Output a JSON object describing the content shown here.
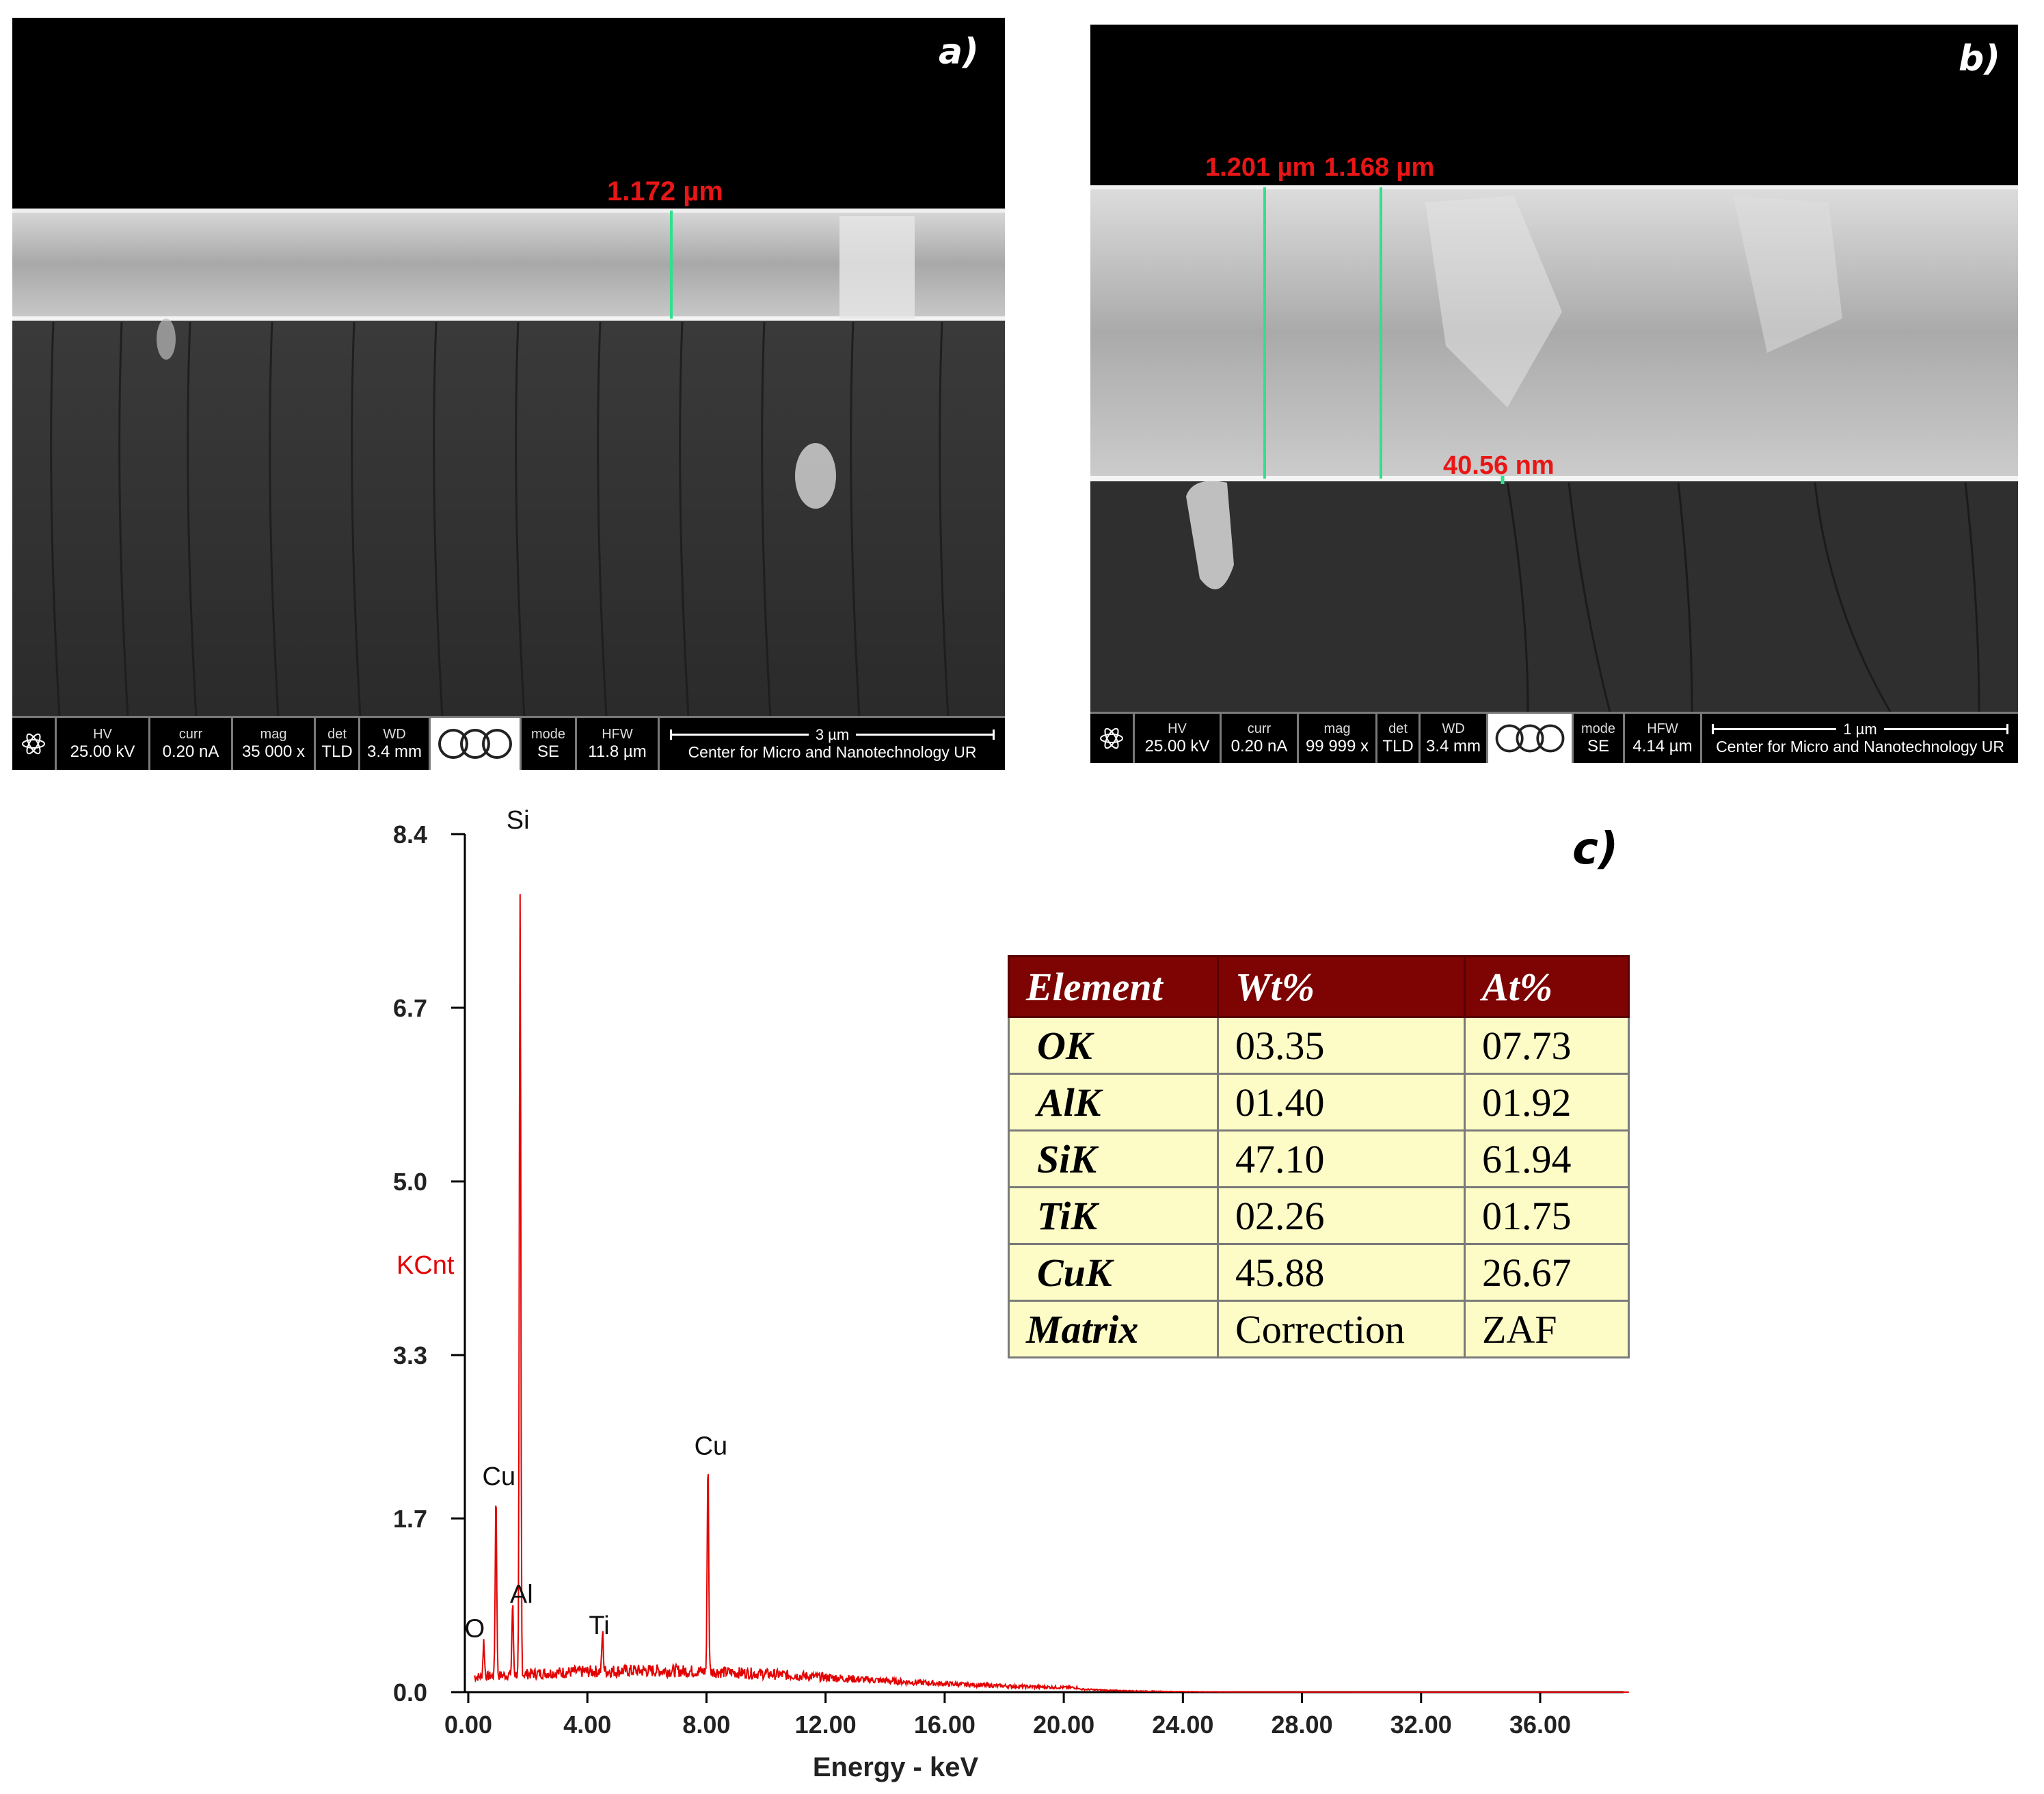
{
  "panel_a": {
    "letter": "a)",
    "measurement": "1.172 µm",
    "databar": {
      "hv_label": "HV",
      "hv_value": "25.00 kV",
      "curr_label": "curr",
      "curr_value": "0.20 nA",
      "mag_label": "mag",
      "mag_value": "35 000 x",
      "det_label": "det",
      "det_value": "TLD",
      "wd_label": "WD",
      "wd_value": "3.4 mm",
      "mode_label": "mode",
      "mode_value": "SE",
      "hfw_label": "HFW",
      "hfw_value": "11.8 µm",
      "scale_label": "3 µm",
      "facility": "Center for Micro and Nanotechnology UR"
    }
  },
  "panel_b": {
    "letter": "b)",
    "measurement_1": "1.201 µm",
    "measurement_2": "1.168 µm",
    "measurement_3": "40.56 nm",
    "databar": {
      "hv_label": "HV",
      "hv_value": "25.00 kV",
      "curr_label": "curr",
      "curr_value": "0.20 nA",
      "mag_label": "mag",
      "mag_value": "99 999 x",
      "det_label": "det",
      "det_value": "TLD",
      "wd_label": "WD",
      "wd_value": "3.4 mm",
      "mode_label": "mode",
      "mode_value": "SE",
      "hfw_label": "HFW",
      "hfw_value": "4.14 µm",
      "scale_label": "1 µm",
      "facility": "Center for Micro and Nanotechnology UR"
    }
  },
  "panel_c": {
    "letter": "c)"
  },
  "chart_data": {
    "type": "line",
    "xlabel": "Energy - keV",
    "ylabel": "KCnt",
    "xlim": [
      0,
      39
    ],
    "ylim": [
      0,
      8.4
    ],
    "x_ticks": [
      "0.00",
      "4.00",
      "8.00",
      "12.00",
      "16.00",
      "20.00",
      "24.00",
      "28.00",
      "32.00",
      "36.00"
    ],
    "x_tick_values": [
      0,
      4,
      8,
      12,
      16,
      20,
      24,
      28,
      32,
      36
    ],
    "y_ticks": [
      "0.0",
      "1.7",
      "3.3",
      "5.0",
      "6.7",
      "8.4"
    ],
    "y_tick_values": [
      0,
      1.7,
      3.3,
      5.0,
      6.7,
      8.4
    ],
    "color": "#e30000",
    "peaks": [
      {
        "label": "O",
        "x": 0.52,
        "y": 0.35
      },
      {
        "label": "Cu",
        "x": 0.93,
        "y": 1.8
      },
      {
        "label": "Al",
        "x": 1.49,
        "y": 0.7
      },
      {
        "label": "Si",
        "x": 1.74,
        "y": 7.6
      },
      {
        "label": "Ti",
        "x": 4.51,
        "y": 0.38
      },
      {
        "label": "Cu",
        "x": 8.05,
        "y": 2.1
      }
    ]
  },
  "eds_table": {
    "headers": [
      "Element",
      "Wt%",
      "At%"
    ],
    "rows": [
      [
        "OK",
        "03.35",
        "07.73"
      ],
      [
        "AlK",
        "01.40",
        "01.92"
      ],
      [
        "SiK",
        "47.10",
        "61.94"
      ],
      [
        "TiK",
        "02.26",
        "01.75"
      ],
      [
        "CuK",
        "45.88",
        "26.67"
      ],
      [
        "Matrix",
        "Correction",
        "ZAF"
      ]
    ]
  }
}
